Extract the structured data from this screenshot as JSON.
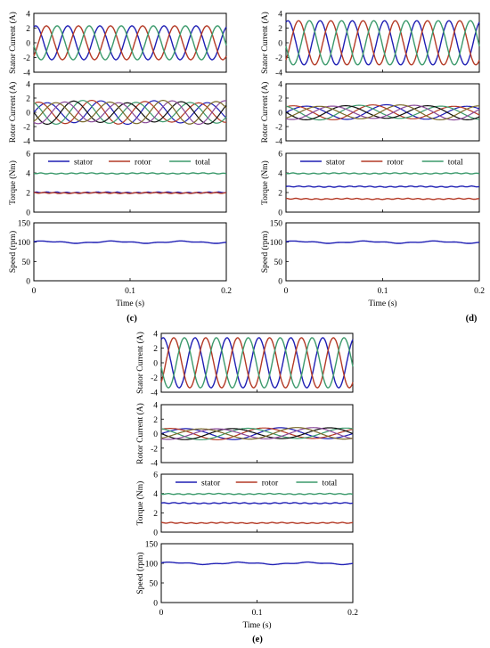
{
  "figure": {
    "panel_labels": [
      "(c)",
      "(d)",
      "(e)"
    ]
  },
  "colors": {
    "phase_a": "#1f1fb4",
    "phase_b": "#b43a26",
    "phase_c": "#3c9a6c",
    "black": "#111111",
    "purple": "#8a4a9a",
    "olive": "#7a6a2a",
    "stator": "#1f1fb4",
    "rotor": "#b43a26",
    "total": "#3c9a6c"
  },
  "chart_data": [
    {
      "panel": "(c)",
      "type": "line",
      "xlabel": "Time (s)",
      "xlim": [
        0,
        0.2
      ],
      "xticks": [
        "0",
        "0.1",
        "0.2"
      ],
      "subplots": [
        {
          "kind": "stator_current",
          "ylabel": "Stator Current (A)",
          "ylim": [
            -4,
            4
          ],
          "yticks": [
            "4",
            "2",
            "0",
            "-2",
            "-4"
          ],
          "amplitude": 2.3,
          "frequency_hz": 30,
          "phases": 3
        },
        {
          "kind": "rotor_current",
          "ylabel": "Rotor Current (A)",
          "ylim": [
            -4,
            4
          ],
          "yticks": [
            "4",
            "2",
            "0",
            "-2",
            "-4"
          ],
          "amplitude": 1.5,
          "frequency_hz": 18,
          "phases": 6
        },
        {
          "kind": "torque",
          "ylabel": "Torque (Nm)",
          "ylim": [
            0,
            6
          ],
          "yticks": [
            "6",
            "4",
            "2",
            "0"
          ],
          "legend": [
            "stator",
            "rotor",
            "total"
          ],
          "series": [
            {
              "name": "stator",
              "value": 2.0
            },
            {
              "name": "rotor",
              "value": 1.95
            },
            {
              "name": "total",
              "value": 3.95
            }
          ]
        },
        {
          "kind": "speed",
          "ylabel": "Speed (rpm)",
          "ylim": [
            0,
            150
          ],
          "yticks": [
            "150",
            "100",
            "50",
            "0"
          ],
          "value": 100
        }
      ]
    },
    {
      "panel": "(d)",
      "type": "line",
      "xlabel": "Time (s)",
      "xlim": [
        0,
        0.2
      ],
      "xticks": [
        "0",
        "0.1",
        "0.2"
      ],
      "subplots": [
        {
          "kind": "stator_current",
          "ylabel": "Stator Current (A)",
          "ylim": [
            -4,
            4
          ],
          "yticks": [
            "4",
            "2",
            "0",
            "-2",
            "-4"
          ],
          "amplitude": 3.0,
          "frequency_hz": 30,
          "phases": 3
        },
        {
          "kind": "rotor_current",
          "ylabel": "Rotor Current (A)",
          "ylim": [
            -4,
            4
          ],
          "yticks": [
            "4",
            "2",
            "0",
            "-2",
            "-4"
          ],
          "amplitude": 0.95,
          "frequency_hz": 12,
          "phases": 6
        },
        {
          "kind": "torque",
          "ylabel": "Torque (Nm)",
          "ylim": [
            0,
            6
          ],
          "yticks": [
            "6",
            "4",
            "2",
            "0"
          ],
          "legend": [
            "stator",
            "rotor",
            "total"
          ],
          "series": [
            {
              "name": "stator",
              "value": 2.6
            },
            {
              "name": "rotor",
              "value": 1.35
            },
            {
              "name": "total",
              "value": 3.95
            }
          ]
        },
        {
          "kind": "speed",
          "ylabel": "Speed (rpm)",
          "ylim": [
            0,
            150
          ],
          "yticks": [
            "150",
            "100",
            "50",
            "0"
          ],
          "value": 100
        }
      ]
    },
    {
      "panel": "(e)",
      "type": "line",
      "xlabel": "Time (s)",
      "xlim": [
        0,
        0.2
      ],
      "xticks": [
        "0",
        "0.1",
        "0.2"
      ],
      "subplots": [
        {
          "kind": "stator_current",
          "ylabel": "Stator Current (A)",
          "ylim": [
            -4,
            4
          ],
          "yticks": [
            "4",
            "2",
            "0",
            "-2",
            "-4"
          ],
          "amplitude": 3.4,
          "frequency_hz": 30,
          "phases": 3
        },
        {
          "kind": "rotor_current",
          "ylabel": "Rotor Current (A)",
          "ylim": [
            -4,
            4
          ],
          "yticks": [
            "4",
            "2",
            "0",
            "-2",
            "-4"
          ],
          "amplitude": 0.75,
          "frequency_hz": 10,
          "phases": 6
        },
        {
          "kind": "torque",
          "ylabel": "Torque (Nm)",
          "ylim": [
            0,
            6
          ],
          "yticks": [
            "6",
            "4",
            "2",
            "0"
          ],
          "legend": [
            "stator",
            "rotor",
            "total"
          ],
          "series": [
            {
              "name": "stator",
              "value": 3.0
            },
            {
              "name": "rotor",
              "value": 0.95
            },
            {
              "name": "total",
              "value": 3.95
            }
          ]
        },
        {
          "kind": "speed",
          "ylabel": "Speed (rpm)",
          "ylim": [
            0,
            150
          ],
          "yticks": [
            "150",
            "100",
            "50",
            "0"
          ],
          "value": 100
        }
      ]
    }
  ]
}
